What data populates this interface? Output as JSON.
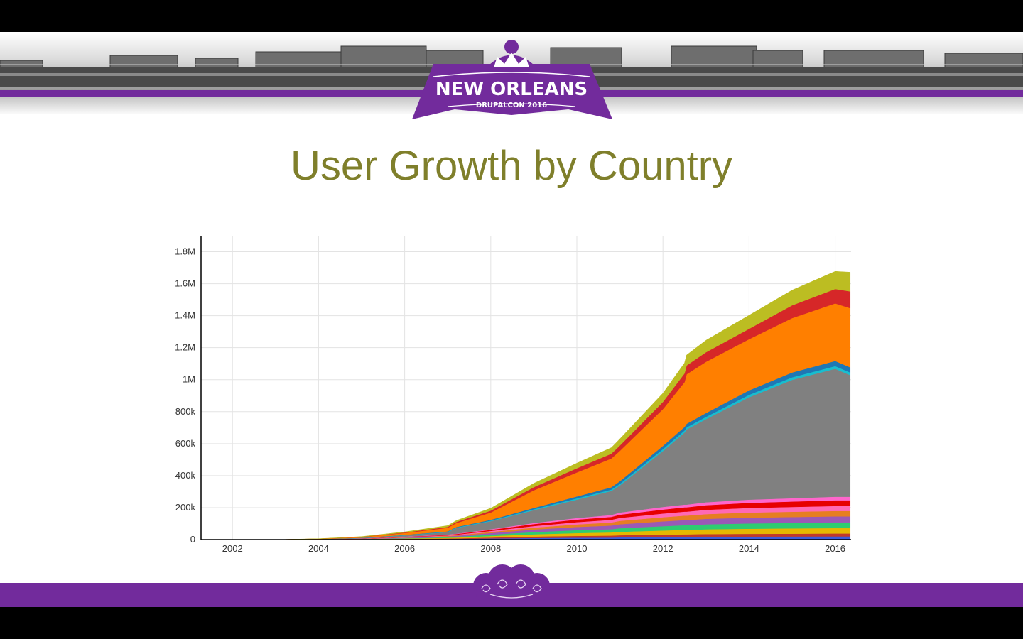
{
  "slide": {
    "title": "User Growth by Country",
    "logo_text": "NEW ORLEANS",
    "logo_subtext": "DRUPALCON 2016",
    "colors": {
      "accent": "#722b9c",
      "title": "#7f7f2b"
    }
  },
  "chart_data": {
    "type": "area",
    "stacked": true,
    "title": "",
    "xlabel": "",
    "ylabel": "",
    "xlim": [
      2001.27,
      2016.37
    ],
    "ylim": [
      0,
      1900000
    ],
    "x_ticks": [
      2002,
      2004,
      2006,
      2008,
      2010,
      2012,
      2014,
      2016
    ],
    "x_tick_labels": [
      "2002",
      "2004",
      "2006",
      "2008",
      "2010",
      "2012",
      "2014",
      "2016"
    ],
    "y_ticks": [
      0,
      200000,
      400000,
      600000,
      800000,
      1000000,
      1200000,
      1400000,
      1600000,
      1800000
    ],
    "y_tick_labels": [
      "0",
      "200k",
      "400k",
      "600k",
      "800k",
      "1M",
      "1.2M",
      "1.4M",
      "1.6M",
      "1.8M"
    ],
    "grid": true,
    "legend": "none",
    "x": [
      2001.3,
      2003.0,
      2004.0,
      2005.0,
      2006.0,
      2007.0,
      2007.2,
      2008.0,
      2009.0,
      2010.0,
      2010.8,
      2011.0,
      2012.0,
      2012.5,
      2012.55,
      2013.0,
      2014.0,
      2015.0,
      2016.0,
      2016.35
    ],
    "series": [
      {
        "color": "#3b5bdb",
        "values": [
          0,
          0,
          300,
          1000,
          2500,
          4000,
          4500,
          7000,
          10000,
          12000,
          13000,
          14000,
          16000,
          17000,
          17000,
          18000,
          19000,
          19500,
          20000,
          20000
        ]
      },
      {
        "color": "#c0392b",
        "values": [
          0,
          0,
          200,
          800,
          2000,
          3000,
          3500,
          6000,
          9000,
          11000,
          12000,
          13000,
          15000,
          16000,
          16000,
          16500,
          17000,
          17500,
          18000,
          18000
        ]
      },
      {
        "color": "#e6b800",
        "values": [
          0,
          0,
          200,
          800,
          2000,
          4000,
          5000,
          9000,
          14000,
          18000,
          20000,
          22000,
          26000,
          28000,
          28000,
          30000,
          32000,
          33000,
          34000,
          34000
        ]
      },
      {
        "color": "#2ecc71",
        "values": [
          0,
          0,
          200,
          800,
          2000,
          4000,
          5000,
          9000,
          14000,
          18000,
          20000,
          22000,
          27000,
          29000,
          29000,
          31000,
          33000,
          34000,
          35000,
          35000
        ]
      },
      {
        "color": "#9b59b6",
        "values": [
          0,
          0,
          300,
          1000,
          3000,
          5000,
          6000,
          10000,
          16000,
          20000,
          23000,
          25000,
          30000,
          32000,
          32000,
          34000,
          36000,
          37000,
          38000,
          38000
        ]
      },
      {
        "color": "#e67e22",
        "values": [
          0,
          0,
          200,
          800,
          2000,
          3000,
          3500,
          7000,
          12000,
          16000,
          19000,
          21000,
          26000,
          28000,
          28000,
          30000,
          32000,
          33000,
          34000,
          34000
        ]
      },
      {
        "color": "#ff69b4",
        "values": [
          0,
          0,
          200,
          700,
          1800,
          3000,
          3500,
          6000,
          10000,
          14000,
          17000,
          19000,
          23000,
          25000,
          25000,
          27000,
          29000,
          30000,
          31000,
          31000
        ]
      },
      {
        "color": "#e60000",
        "values": [
          0,
          0,
          200,
          800,
          2000,
          3500,
          4000,
          7000,
          12000,
          16000,
          18000,
          20000,
          25000,
          27000,
          27000,
          29000,
          32000,
          34000,
          36000,
          36000
        ]
      },
      {
        "color": "#ff66cc",
        "values": [
          0,
          0,
          100,
          500,
          1200,
          2000,
          2500,
          4000,
          7000,
          10000,
          12000,
          13000,
          16000,
          17000,
          17000,
          18000,
          20000,
          21000,
          22000,
          22000
        ]
      },
      {
        "color": "#808080",
        "values": [
          0,
          0,
          1000,
          3000,
          8000,
          15000,
          35000,
          50000,
          80000,
          115000,
          150000,
          170000,
          350000,
          450000,
          470000,
          520000,
          640000,
          740000,
          800000,
          760000
        ]
      },
      {
        "color": "#17becf",
        "values": [
          0,
          0,
          200,
          600,
          1500,
          2500,
          3000,
          4000,
          6000,
          8000,
          9000,
          10000,
          12000,
          13000,
          13000,
          14000,
          15000,
          16000,
          17000,
          17000
        ]
      },
      {
        "color": "#1f77b4",
        "values": [
          0,
          0,
          200,
          600,
          1500,
          2500,
          3000,
          5000,
          8000,
          12000,
          14000,
          16000,
          20000,
          22000,
          22000,
          24000,
          28000,
          30000,
          32000,
          32000
        ]
      },
      {
        "color": "#ff7f00",
        "values": [
          0,
          0,
          1500,
          5000,
          12000,
          22000,
          25000,
          45000,
          110000,
          150000,
          180000,
          190000,
          230000,
          280000,
          310000,
          320000,
          320000,
          340000,
          360000,
          370000
        ]
      },
      {
        "color": "#d62728",
        "values": [
          0,
          0,
          300,
          1000,
          3000,
          6000,
          7000,
          12000,
          20000,
          26000,
          30000,
          33000,
          45000,
          55000,
          55000,
          60000,
          65000,
          80000,
          90000,
          105000
        ]
      },
      {
        "color": "#bcbd22",
        "values": [
          0,
          0,
          500,
          1500,
          4000,
          8000,
          9000,
          15000,
          24000,
          32000,
          38000,
          42000,
          55000,
          65000,
          65000,
          75000,
          85000,
          95000,
          110000,
          120000
        ]
      }
    ]
  }
}
